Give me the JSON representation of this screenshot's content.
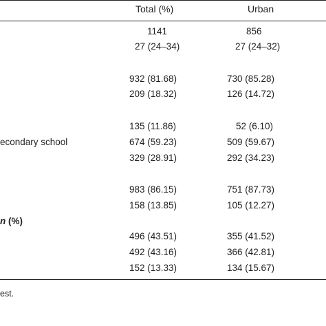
{
  "table": {
    "headers": {
      "total": "Total (%)",
      "urban": "Urban"
    },
    "row_labels": {
      "secondary_school": "econdary school",
      "section_n_italic": "n",
      "section_n_suffix": " (%)"
    },
    "rows": [
      {
        "total": "1141",
        "urban": "856"
      },
      {
        "total": "27 (24–34)",
        "urban": "27 (24–32)"
      },
      {
        "total": "932 (81.68)",
        "urban": "730 (85.28)"
      },
      {
        "total": "209 (18.32)",
        "urban": "126 (14.72)"
      },
      {
        "total": "135 (11.86)",
        "urban": "52 (6.10)"
      },
      {
        "total": "674 (59.23)",
        "urban": "509 (59.67)"
      },
      {
        "total": "329 (28.91)",
        "urban": "292 (34.23)"
      },
      {
        "total": "983 (86.15)",
        "urban": "751 (87.73)"
      },
      {
        "total": "158 (13.85)",
        "urban": "105 (12.27)"
      },
      {
        "total": "496 (43.51)",
        "urban": "355 (41.52)"
      },
      {
        "total": "492 (43.16)",
        "urban": "366 (42.81)"
      },
      {
        "total": "152 (13.33)",
        "urban": "134 (15.67)"
      }
    ]
  },
  "footnote": "est."
}
